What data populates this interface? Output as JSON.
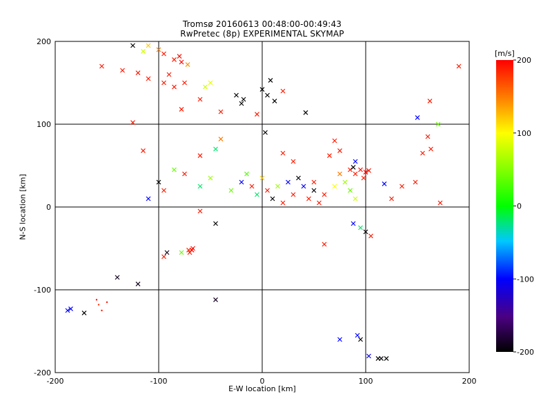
{
  "chart_data": {
    "type": "scatter",
    "title": "Tromsø 20160613 00:48:00-00:49:43",
    "subtitle": "RwPretec (8p) EXPERIMENTAL SKYMAP",
    "xlabel": "E-W location [km]",
    "ylabel": "N-S location [km]",
    "xlim": [
      -200,
      200
    ],
    "ylim": [
      -200,
      200
    ],
    "x_ticks": [
      -200,
      -100,
      0,
      100,
      200
    ],
    "y_ticks": [
      -200,
      -100,
      0,
      100,
      200
    ],
    "x_tick_labels": [
      "-200",
      "-100",
      "0",
      "100",
      "200"
    ],
    "y_tick_labels": [
      "-200",
      "-100",
      "0",
      "100",
      "200"
    ],
    "grid": true,
    "colorbar": {
      "label": "[m/s]",
      "range": [
        -200,
        200
      ],
      "ticks": [
        -200,
        -100,
        0,
        100,
        200
      ],
      "tick_labels": [
        "-200",
        "-100",
        "0",
        "100",
        "200"
      ],
      "colormap": "rainbow (black-purple-blue-cyan-green-yellow-red)"
    },
    "marker_types": [
      "cross",
      "dot"
    ],
    "points": [
      {
        "x": -68,
        "y": -52,
        "v": 200,
        "m": "cross"
      },
      {
        "x": -70,
        "y": -55,
        "v": 190,
        "m": "cross"
      },
      {
        "x": -67,
        "y": -50,
        "v": 195,
        "m": "cross"
      },
      {
        "x": -71,
        "y": -52,
        "v": 185,
        "m": "cross"
      },
      {
        "x": -92,
        "y": -55,
        "v": -190,
        "m": "cross"
      },
      {
        "x": -78,
        "y": -55,
        "v": 40,
        "m": "cross"
      },
      {
        "x": -120,
        "y": -93,
        "v": -190,
        "m": "cross"
      },
      {
        "x": -140,
        "y": -85,
        "v": -190,
        "m": "cross"
      },
      {
        "x": -172,
        "y": -128,
        "v": -200,
        "m": "cross"
      },
      {
        "x": -185,
        "y": -123,
        "v": -100,
        "m": "cross"
      },
      {
        "x": -188,
        "y": -125,
        "v": -100,
        "m": "cross"
      },
      {
        "x": -150,
        "y": -115,
        "v": 190,
        "m": "dot"
      },
      {
        "x": -155,
        "y": -125,
        "v": 190,
        "m": "dot"
      },
      {
        "x": -158,
        "y": -118,
        "v": 180,
        "m": "dot"
      },
      {
        "x": -160,
        "y": -112,
        "v": 200,
        "m": "dot"
      },
      {
        "x": -45,
        "y": -112,
        "v": -190,
        "m": "cross"
      },
      {
        "x": -95,
        "y": -60,
        "v": 190,
        "m": "cross"
      },
      {
        "x": -155,
        "y": 170,
        "v": 190,
        "m": "cross"
      },
      {
        "x": -135,
        "y": 165,
        "v": 190,
        "m": "cross"
      },
      {
        "x": -125,
        "y": 195,
        "v": -200,
        "m": "cross"
      },
      {
        "x": -115,
        "y": 188,
        "v": 80,
        "m": "cross"
      },
      {
        "x": -110,
        "y": 195,
        "v": 120,
        "m": "cross"
      },
      {
        "x": -100,
        "y": 190,
        "v": 150,
        "m": "cross"
      },
      {
        "x": -95,
        "y": 185,
        "v": 190,
        "m": "cross"
      },
      {
        "x": -85,
        "y": 178,
        "v": 190,
        "m": "cross"
      },
      {
        "x": -80,
        "y": 182,
        "v": 195,
        "m": "cross"
      },
      {
        "x": -78,
        "y": 175,
        "v": 200,
        "m": "cross"
      },
      {
        "x": -90,
        "y": 160,
        "v": 190,
        "m": "cross"
      },
      {
        "x": -95,
        "y": 150,
        "v": 190,
        "m": "cross"
      },
      {
        "x": -85,
        "y": 145,
        "v": 190,
        "m": "cross"
      },
      {
        "x": -75,
        "y": 150,
        "v": 190,
        "m": "cross"
      },
      {
        "x": -110,
        "y": 155,
        "v": 190,
        "m": "cross"
      },
      {
        "x": -120,
        "y": 162,
        "v": 190,
        "m": "cross"
      },
      {
        "x": -72,
        "y": 172,
        "v": 140,
        "m": "cross"
      },
      {
        "x": -55,
        "y": 145,
        "v": 80,
        "m": "cross"
      },
      {
        "x": -50,
        "y": 150,
        "v": 90,
        "m": "cross"
      },
      {
        "x": -60,
        "y": 130,
        "v": 190,
        "m": "cross"
      },
      {
        "x": -78,
        "y": 118,
        "v": 190,
        "m": "cross"
      },
      {
        "x": -40,
        "y": 115,
        "v": 190,
        "m": "cross"
      },
      {
        "x": -25,
        "y": 135,
        "v": -200,
        "m": "cross"
      },
      {
        "x": -18,
        "y": 130,
        "v": -200,
        "m": "cross"
      },
      {
        "x": -20,
        "y": 125,
        "v": -200,
        "m": "cross"
      },
      {
        "x": 0,
        "y": 142,
        "v": -200,
        "m": "cross"
      },
      {
        "x": 5,
        "y": 135,
        "v": -200,
        "m": "cross"
      },
      {
        "x": 8,
        "y": 153,
        "v": -200,
        "m": "cross"
      },
      {
        "x": 20,
        "y": 140,
        "v": 190,
        "m": "cross"
      },
      {
        "x": 12,
        "y": 128,
        "v": -200,
        "m": "cross"
      },
      {
        "x": 42,
        "y": 114,
        "v": -200,
        "m": "cross"
      },
      {
        "x": -5,
        "y": 112,
        "v": 190,
        "m": "cross"
      },
      {
        "x": 3,
        "y": 90,
        "v": -200,
        "m": "cross"
      },
      {
        "x": -125,
        "y": 102,
        "v": 190,
        "m": "cross"
      },
      {
        "x": -115,
        "y": 68,
        "v": 190,
        "m": "cross"
      },
      {
        "x": -100,
        "y": 30,
        "v": -200,
        "m": "cross"
      },
      {
        "x": -110,
        "y": 10,
        "v": -100,
        "m": "cross"
      },
      {
        "x": -95,
        "y": 20,
        "v": 190,
        "m": "cross"
      },
      {
        "x": -85,
        "y": 45,
        "v": 40,
        "m": "cross"
      },
      {
        "x": -75,
        "y": 40,
        "v": 190,
        "m": "cross"
      },
      {
        "x": -60,
        "y": 25,
        "v": -20,
        "m": "cross"
      },
      {
        "x": -50,
        "y": 35,
        "v": 60,
        "m": "cross"
      },
      {
        "x": -60,
        "y": 62,
        "v": 190,
        "m": "cross"
      },
      {
        "x": -45,
        "y": 70,
        "v": -20,
        "m": "cross"
      },
      {
        "x": -40,
        "y": 82,
        "v": 150,
        "m": "cross"
      },
      {
        "x": -45,
        "y": -20,
        "v": -200,
        "m": "cross"
      },
      {
        "x": -60,
        "y": -5,
        "v": 190,
        "m": "cross"
      },
      {
        "x": -30,
        "y": 20,
        "v": 40,
        "m": "cross"
      },
      {
        "x": -20,
        "y": 30,
        "v": -100,
        "m": "cross"
      },
      {
        "x": -15,
        "y": 40,
        "v": 30,
        "m": "cross"
      },
      {
        "x": -10,
        "y": 25,
        "v": 190,
        "m": "cross"
      },
      {
        "x": -5,
        "y": 15,
        "v": -20,
        "m": "cross"
      },
      {
        "x": 0,
        "y": 35,
        "v": 120,
        "m": "cross"
      },
      {
        "x": 5,
        "y": 20,
        "v": 190,
        "m": "cross"
      },
      {
        "x": 10,
        "y": 10,
        "v": -200,
        "m": "cross"
      },
      {
        "x": 15,
        "y": 25,
        "v": 60,
        "m": "cross"
      },
      {
        "x": 20,
        "y": 5,
        "v": 190,
        "m": "cross"
      },
      {
        "x": 25,
        "y": 30,
        "v": -100,
        "m": "cross"
      },
      {
        "x": 30,
        "y": 15,
        "v": 190,
        "m": "cross"
      },
      {
        "x": 35,
        "y": 35,
        "v": -200,
        "m": "cross"
      },
      {
        "x": 40,
        "y": 25,
        "v": -100,
        "m": "cross"
      },
      {
        "x": 45,
        "y": 10,
        "v": 190,
        "m": "cross"
      },
      {
        "x": 50,
        "y": 20,
        "v": -200,
        "m": "cross"
      },
      {
        "x": 55,
        "y": 5,
        "v": 190,
        "m": "cross"
      },
      {
        "x": 60,
        "y": 15,
        "v": 190,
        "m": "cross"
      },
      {
        "x": 70,
        "y": 25,
        "v": 100,
        "m": "cross"
      },
      {
        "x": 75,
        "y": 40,
        "v": 150,
        "m": "cross"
      },
      {
        "x": 80,
        "y": 30,
        "v": 60,
        "m": "cross"
      },
      {
        "x": 85,
        "y": 45,
        "v": 190,
        "m": "cross"
      },
      {
        "x": 90,
        "y": 40,
        "v": 190,
        "m": "cross"
      },
      {
        "x": 95,
        "y": 45,
        "v": 195,
        "m": "cross"
      },
      {
        "x": 100,
        "y": 42,
        "v": 200,
        "m": "cross"
      },
      {
        "x": 103,
        "y": 44,
        "v": 190,
        "m": "cross"
      },
      {
        "x": 98,
        "y": 35,
        "v": 190,
        "m": "cross"
      },
      {
        "x": 88,
        "y": 48,
        "v": -200,
        "m": "cross"
      },
      {
        "x": 90,
        "y": 55,
        "v": -100,
        "m": "cross"
      },
      {
        "x": 85,
        "y": 20,
        "v": 40,
        "m": "cross"
      },
      {
        "x": 90,
        "y": 10,
        "v": 80,
        "m": "cross"
      },
      {
        "x": 95,
        "y": -25,
        "v": -20,
        "m": "cross"
      },
      {
        "x": 100,
        "y": -30,
        "v": -200,
        "m": "cross"
      },
      {
        "x": 88,
        "y": -20,
        "v": -100,
        "m": "cross"
      },
      {
        "x": 105,
        "y": -35,
        "v": 190,
        "m": "cross"
      },
      {
        "x": 118,
        "y": 28,
        "v": -100,
        "m": "cross"
      },
      {
        "x": 125,
        "y": 10,
        "v": 190,
        "m": "cross"
      },
      {
        "x": 135,
        "y": 25,
        "v": 190,
        "m": "cross"
      },
      {
        "x": 148,
        "y": 30,
        "v": 190,
        "m": "cross"
      },
      {
        "x": 150,
        "y": 108,
        "v": -100,
        "m": "cross"
      },
      {
        "x": 155,
        "y": 65,
        "v": 190,
        "m": "cross"
      },
      {
        "x": 160,
        "y": 85,
        "v": 190,
        "m": "cross"
      },
      {
        "x": 163,
        "y": 70,
        "v": 190,
        "m": "cross"
      },
      {
        "x": 170,
        "y": 100,
        "v": 40,
        "m": "cross"
      },
      {
        "x": 162,
        "y": 128,
        "v": 190,
        "m": "cross"
      },
      {
        "x": 172,
        "y": 5,
        "v": 190,
        "m": "cross"
      },
      {
        "x": 190,
        "y": 170,
        "v": 190,
        "m": "cross"
      },
      {
        "x": 75,
        "y": -160,
        "v": -100,
        "m": "cross"
      },
      {
        "x": 95,
        "y": -160,
        "v": -200,
        "m": "cross"
      },
      {
        "x": 92,
        "y": -155,
        "v": -100,
        "m": "cross"
      },
      {
        "x": 103,
        "y": -180,
        "v": -100,
        "m": "cross"
      },
      {
        "x": 112,
        "y": -183,
        "v": -200,
        "m": "cross"
      },
      {
        "x": 115,
        "y": -183,
        "v": -200,
        "m": "cross"
      },
      {
        "x": 120,
        "y": -183,
        "v": -200,
        "m": "cross"
      },
      {
        "x": 60,
        "y": -45,
        "v": 190,
        "m": "cross"
      },
      {
        "x": 75,
        "y": 68,
        "v": 190,
        "m": "cross"
      },
      {
        "x": 70,
        "y": 80,
        "v": 190,
        "m": "cross"
      },
      {
        "x": 65,
        "y": 62,
        "v": 190,
        "m": "cross"
      },
      {
        "x": 50,
        "y": 30,
        "v": 190,
        "m": "cross"
      },
      {
        "x": 30,
        "y": 55,
        "v": 190,
        "m": "cross"
      },
      {
        "x": 20,
        "y": 65,
        "v": 190,
        "m": "cross"
      }
    ]
  }
}
